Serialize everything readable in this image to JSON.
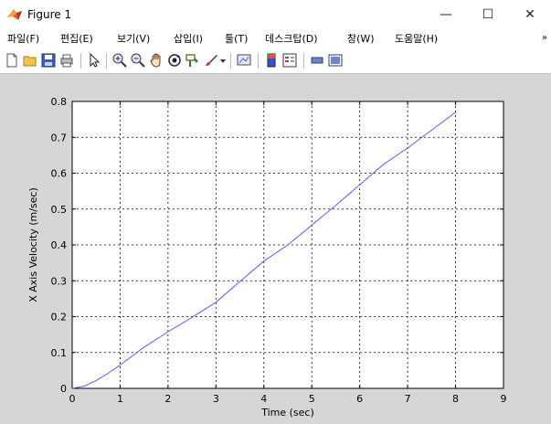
{
  "window": {
    "title": "Figure 1",
    "minimize_glyph": "—",
    "maximize_glyph": "☐",
    "close_glyph": "✕"
  },
  "menu": {
    "items": [
      {
        "label": "파일(F)"
      },
      {
        "label": "편집(E)"
      },
      {
        "label": "보기(V)"
      },
      {
        "label": "삽입(I)"
      },
      {
        "label": "툴(T)"
      },
      {
        "label": "데스크탑(D)"
      },
      {
        "label": "창(W)"
      },
      {
        "label": "도움말(H)"
      }
    ],
    "overflow_glyph": "»"
  },
  "toolbar": {
    "icons": [
      "new-figure-icon",
      "open-file-icon",
      "save-icon",
      "print-icon",
      "select-arrow-icon",
      "zoom-in-icon",
      "zoom-out-icon",
      "pan-icon",
      "rotate-3d-icon",
      "data-cursor-icon",
      "brush-icon",
      "brush-dropdown-icon",
      "link-plot-icon",
      "colorbar-icon",
      "legend-icon",
      "hide-plot-tools-icon",
      "show-plot-tools-icon"
    ]
  },
  "colors": {
    "line": "#5a5aff",
    "figure_bg": "#d6d6d6",
    "axes_bg": "#ffffff",
    "grid": "#000000"
  },
  "chart_data": {
    "type": "line",
    "title": "",
    "xlabel": "Time (sec)",
    "ylabel": "X Axis Velocity (m/sec)",
    "xlim": [
      0,
      9
    ],
    "ylim": [
      0,
      0.8
    ],
    "xticks": [
      "0",
      "1",
      "2",
      "3",
      "4",
      "5",
      "6",
      "7",
      "8",
      "9"
    ],
    "yticks": [
      "0",
      "0.1",
      "0.2",
      "0.3",
      "0.4",
      "0.5",
      "0.6",
      "0.7",
      "0.8"
    ],
    "grid": "on",
    "series": [
      {
        "x": [
          0,
          0.25,
          0.5,
          0.75,
          1,
          1.5,
          2,
          2.5,
          3,
          3.5,
          4,
          4.5,
          5,
          5.5,
          6,
          6.5,
          7,
          7.5,
          8
        ],
        "y": [
          0,
          0.006,
          0.022,
          0.042,
          0.065,
          0.115,
          0.158,
          0.198,
          0.24,
          0.298,
          0.355,
          0.4,
          0.455,
          0.51,
          0.568,
          0.625,
          0.67,
          0.72,
          0.77
        ]
      }
    ]
  }
}
